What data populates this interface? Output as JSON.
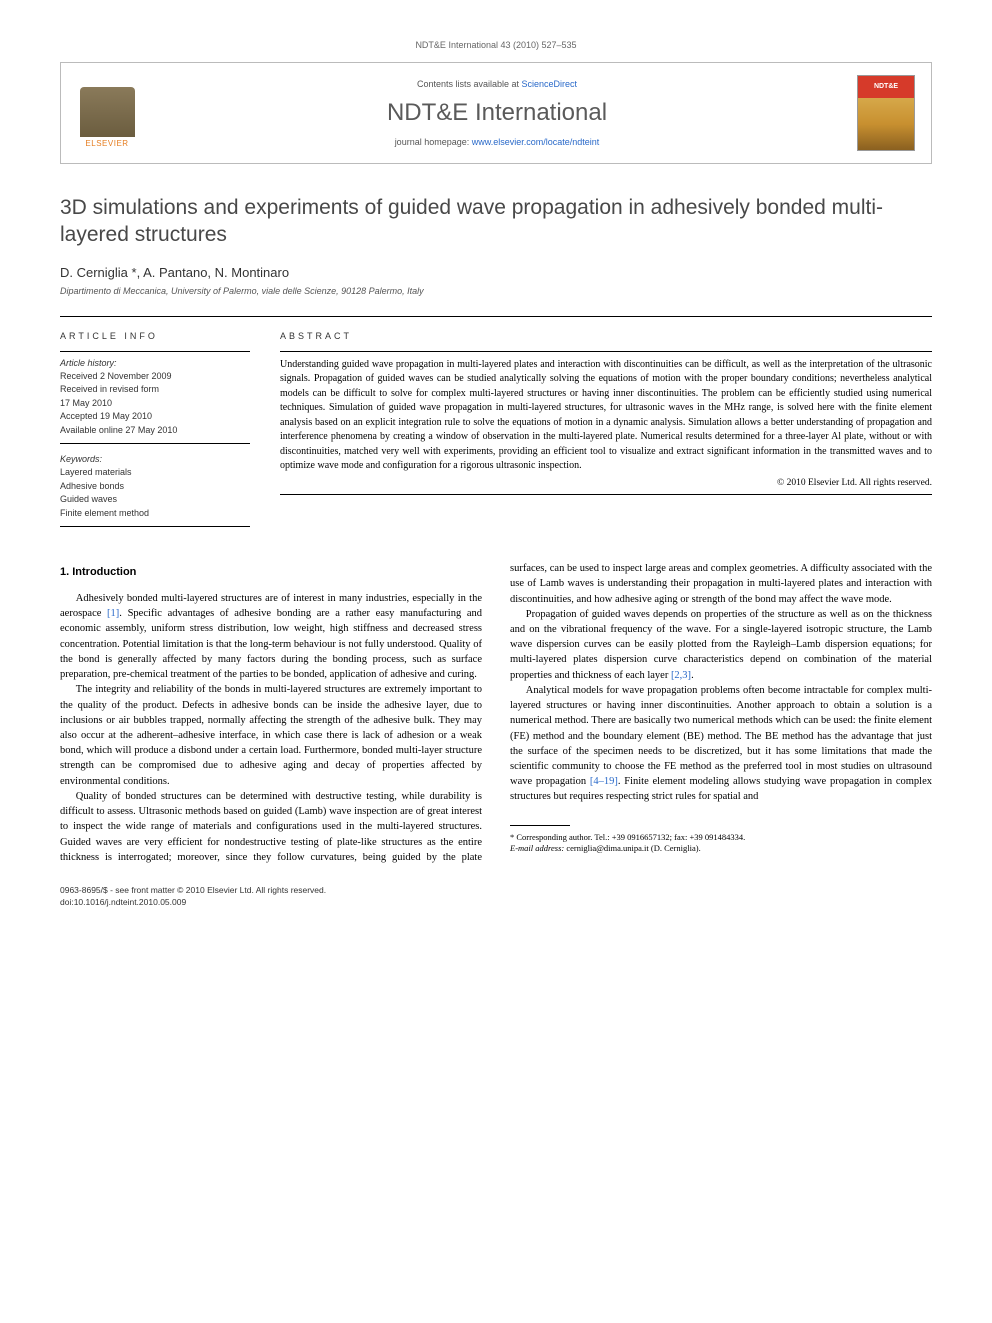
{
  "running_header": "NDT&E International 43 (2010) 527–535",
  "masthead": {
    "contents_prefix": "Contents lists available at ",
    "contents_link": "ScienceDirect",
    "journal_name": "NDT&E International",
    "homepage_prefix": "journal homepage: ",
    "homepage_link": "www.elsevier.com/locate/ndteint",
    "elsevier_label": "ELSEVIER",
    "cover_label": "NDT&E"
  },
  "title": "3D simulations and experiments of guided wave propagation in adhesively bonded multi-layered structures",
  "authors": "D. Cerniglia *, A. Pantano, N. Montinaro",
  "affiliation": "Dipartimento di Meccanica, University of Palermo, viale delle Scienze, 90128 Palermo, Italy",
  "info": {
    "heading": "ARTICLE INFO",
    "history_label": "Article history:",
    "history": [
      "Received 2 November 2009",
      "Received in revised form",
      "17 May 2010",
      "Accepted 19 May 2010",
      "Available online 27 May 2010"
    ],
    "keywords_label": "Keywords:",
    "keywords": [
      "Layered materials",
      "Adhesive bonds",
      "Guided waves",
      "Finite element method"
    ]
  },
  "abstract": {
    "heading": "ABSTRACT",
    "text": "Understanding guided wave propagation in multi-layered plates and interaction with discontinuities can be difficult, as well as the interpretation of the ultrasonic signals. Propagation of guided waves can be studied analytically solving the equations of motion with the proper boundary conditions; nevertheless analytical models can be difficult to solve for complex multi-layered structures or having inner discontinuities. The problem can be efficiently studied using numerical techniques. Simulation of guided wave propagation in multi-layered structures, for ultrasonic waves in the MHz range, is solved here with the finite element analysis based on an explicit integration rule to solve the equations of motion in a dynamic analysis. Simulation allows a better understanding of propagation and interference phenomena by creating a window of observation in the multi-layered plate. Numerical results determined for a three-layer Al plate, without or with discontinuities, matched very well with experiments, providing an efficient tool to visualize and extract significant information in the transmitted waves and to optimize wave mode and configuration for a rigorous ultrasonic inspection.",
    "copyright": "© 2010 Elsevier Ltd. All rights reserved."
  },
  "section1": {
    "heading": "1.  Introduction",
    "p1a": "Adhesively bonded multi-layered structures are of interest in many industries, especially in the aerospace ",
    "ref1": "[1]",
    "p1b": ". Specific advantages of adhesive bonding are a rather easy manufacturing and economic assembly, uniform stress distribution, low weight, high stiffness and decreased stress concentration. Potential limitation is that the long-term behaviour is not fully understood. Quality of the bond is generally affected by many factors during the bonding process, such as surface preparation, pre-chemical treatment of the parties to be bonded, application of adhesive and curing.",
    "p2": "The integrity and reliability of the bonds in multi-layered structures are extremely important to the quality of the product. Defects in adhesive bonds can be inside the adhesive layer, due to inclusions or air bubbles trapped, normally affecting the strength of the adhesive bulk. They may also occur at the adherent–adhesive interface, in which case there is lack of adhesion or a weak bond, which will produce a disbond under a certain load. Furthermore, bonded multi-layer structure strength can be compromised due to adhesive aging and decay of properties affected by environmental conditions.",
    "p3": "Quality of bonded structures can be determined with destructive testing, while durability is difficult to assess. Ultrasonic methods based on guided (Lamb) wave inspection are of great interest to inspect the wide range of materials and configurations used in the multi-layered structures. Guided waves are very efficient for nondestructive testing of plate-like structures as the entire thickness is interrogated; moreover, since they follow curvatures, being guided by the plate surfaces, can be used to inspect large areas and complex geometries. A difficulty associated with the use of Lamb waves is understanding their propagation in multi-layered plates and interaction with discontinuities, and how adhesive aging or strength of the bond may affect the wave mode.",
    "p4a": "Propagation of guided waves depends on properties of the structure as well as on the thickness and on the vibrational frequency of the wave. For a single-layered isotropic structure, the Lamb wave dispersion curves can be easily plotted from the Rayleigh–Lamb dispersion equations; for multi-layered plates dispersion curve characteristics depend on combination of the material properties and thickness of each layer ",
    "ref23": "[2,3]",
    "p4b": ".",
    "p5a": "Analytical models for wave propagation problems often become intractable for complex multi-layered structures or having inner discontinuities. Another approach to obtain a solution is a numerical method. There are basically two numerical methods which can be used: the finite element (FE) method and the boundary element (BE) method. The BE method has the advantage that just the surface of the specimen needs to be discretized, but it has some limitations that made the scientific community to choose the FE method as the preferred tool in most studies on ultrasound wave propagation ",
    "ref419": "[4–19]",
    "p5b": ". Finite element modeling allows studying wave propagation in complex structures but requires respecting strict rules for spatial and"
  },
  "footnote": {
    "line1": "* Corresponding author. Tel.: +39 0916657132; fax: +39 091484334.",
    "email_label": "E-mail address:",
    "email": " cerniglia@dima.unipa.it (D. Cerniglia)."
  },
  "bottom": {
    "line1": "0963-8695/$ - see front matter © 2010 Elsevier Ltd. All rights reserved.",
    "line2": "doi:10.1016/j.ndteint.2010.05.009"
  },
  "colors": {
    "link": "#2969c9",
    "elsevier_orange": "#e67e22",
    "cover_red": "#d63a2a"
  }
}
